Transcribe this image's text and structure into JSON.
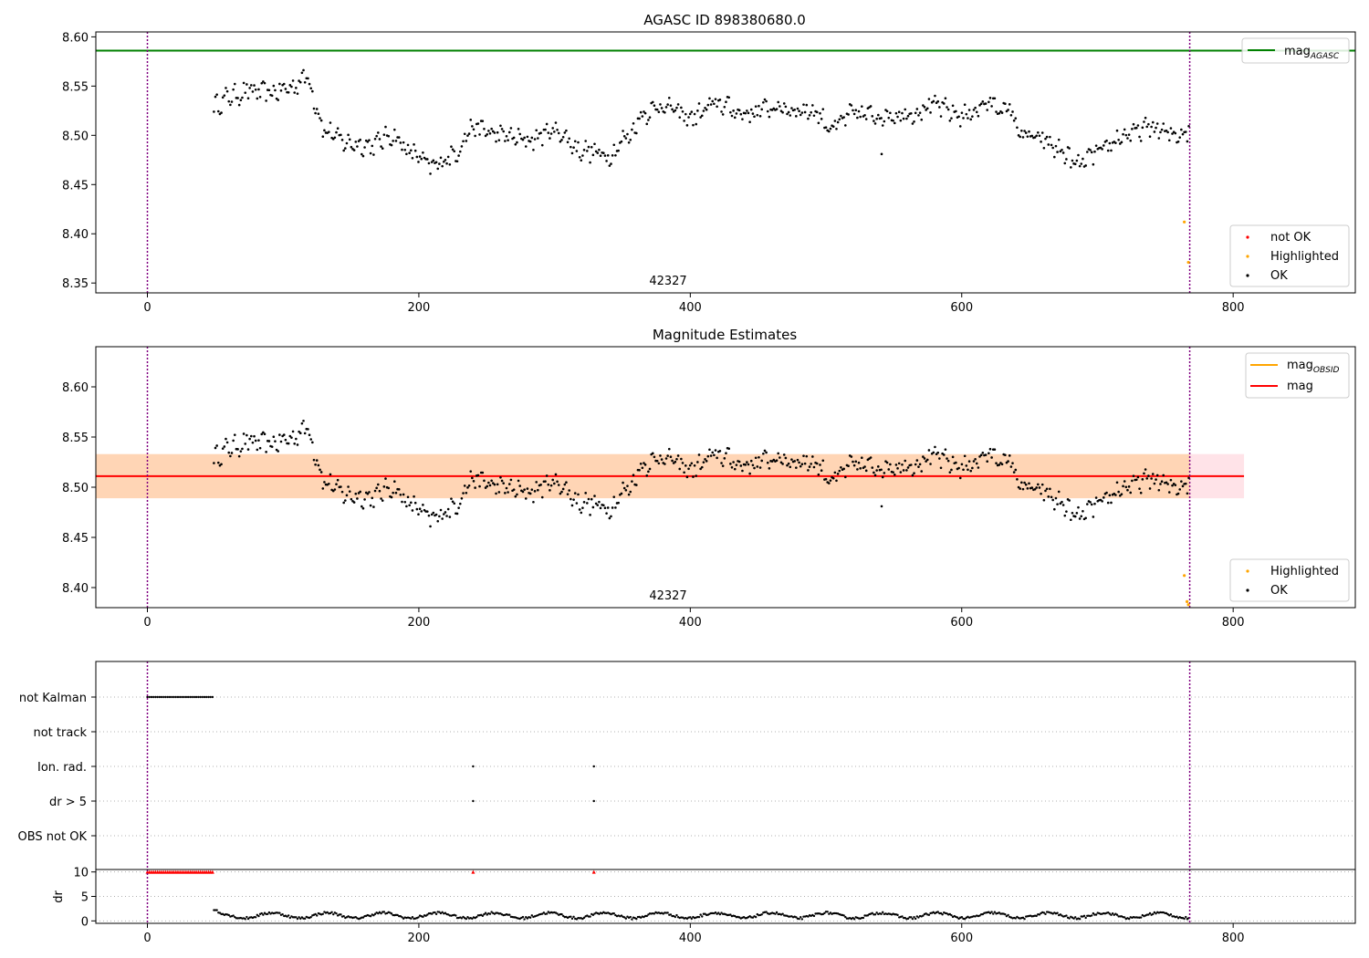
{
  "chart_data": [
    {
      "type": "scatter",
      "title": "AGASC ID 898380680.0",
      "xlim": [
        -38,
        890
      ],
      "ylim": [
        8.34,
        8.605
      ],
      "xticks": [
        0,
        200,
        400,
        600,
        800
      ],
      "yticks": [
        8.35,
        8.4,
        8.45,
        8.5,
        8.55,
        8.6
      ],
      "vlines": [
        0,
        768
      ],
      "hline": {
        "y": 8.586,
        "label": "mag",
        "sub": "AGASC",
        "color": "#008000"
      },
      "obsid_label": {
        "text": "42327",
        "x": 384
      },
      "legend_scatter": [
        {
          "label": "not OK",
          "color": "#ff0000"
        },
        {
          "label": "Highlighted",
          "color": "#ffa500"
        },
        {
          "label": "OK",
          "color": "#000000"
        }
      ],
      "highlighted": [
        [
          764,
          8.412
        ],
        [
          767,
          8.371
        ]
      ],
      "ok_range": [
        49,
        768
      ]
    },
    {
      "type": "scatter",
      "title": "Magnitude Estimates",
      "xlim": [
        -38,
        890
      ],
      "ylim": [
        8.38,
        8.64
      ],
      "xticks": [
        0,
        200,
        400,
        600,
        800
      ],
      "yticks": [
        8.4,
        8.45,
        8.5,
        8.55,
        8.6
      ],
      "vlines": [
        0,
        768
      ],
      "mag_line": {
        "y": 8.511,
        "x0": -38,
        "x1": 808,
        "color": "#ff0000"
      },
      "bands": [
        {
          "y0": 8.489,
          "y1": 8.533,
          "x0": -38,
          "x1": 808,
          "color": "#ffc0cb"
        },
        {
          "y0": 8.489,
          "y1": 8.533,
          "x0": -38,
          "x1": 768,
          "color": "#ffa500"
        }
      ],
      "obsid_label": {
        "text": "42327",
        "x": 384
      },
      "legend_lines": [
        {
          "label": "mag",
          "sub": "OBSID",
          "color": "#ffa500"
        },
        {
          "label": "mag",
          "sub": "",
          "color": "#ff0000"
        }
      ],
      "legend_scatter": [
        {
          "label": "Highlighted",
          "color": "#ffa500"
        },
        {
          "label": "OK",
          "color": "#000000"
        }
      ],
      "highlighted": [
        [
          764,
          8.412
        ],
        [
          766,
          8.386
        ],
        [
          767,
          8.383
        ]
      ],
      "ok_range": [
        49,
        768
      ]
    },
    {
      "type": "scatter",
      "title": "",
      "xlim": [
        -38,
        890
      ],
      "categories": [
        "not Kalman",
        "not track",
        "Ion. rad.",
        "dr > 5",
        "OBS not OK"
      ],
      "flags": {
        "not Kalman": {
          "x_start": 0,
          "x_end": 49
        },
        "Ion. rad.": {
          "x": [
            240,
            329
          ]
        },
        "dr > 5": {
          "x": [
            240,
            329
          ]
        }
      },
      "vlines": [
        0,
        768
      ]
    },
    {
      "type": "scatter",
      "title": "",
      "xlim": [
        -38,
        890
      ],
      "ylim": [
        -0.5,
        10.5
      ],
      "yticks": [
        0,
        5,
        10
      ],
      "ylabel": "dr",
      "xticks": [
        0,
        200,
        400,
        600,
        800
      ],
      "clipped_red": {
        "x_start": 0,
        "x_end": 49,
        "extra": [
          240,
          329
        ],
        "y": 10
      },
      "ok_range": [
        49,
        768
      ],
      "vlines": [
        0,
        768
      ]
    }
  ]
}
